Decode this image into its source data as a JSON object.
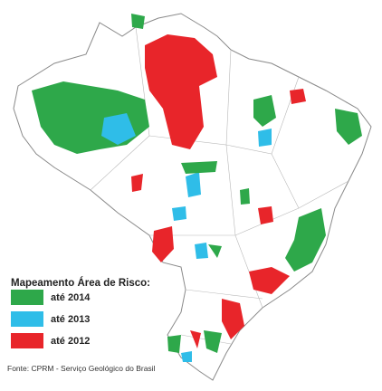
{
  "legend": {
    "title": "Mapeamento Área de Risco:",
    "items": [
      {
        "label": "até 2014",
        "color": "#2ea84a"
      },
      {
        "label": "até 2013",
        "color": "#2fbde8"
      },
      {
        "label": "até 2012",
        "color": "#e8252a"
      }
    ]
  },
  "source": "Fonte: CPRM - Serviço Geológico do Brasil"
}
